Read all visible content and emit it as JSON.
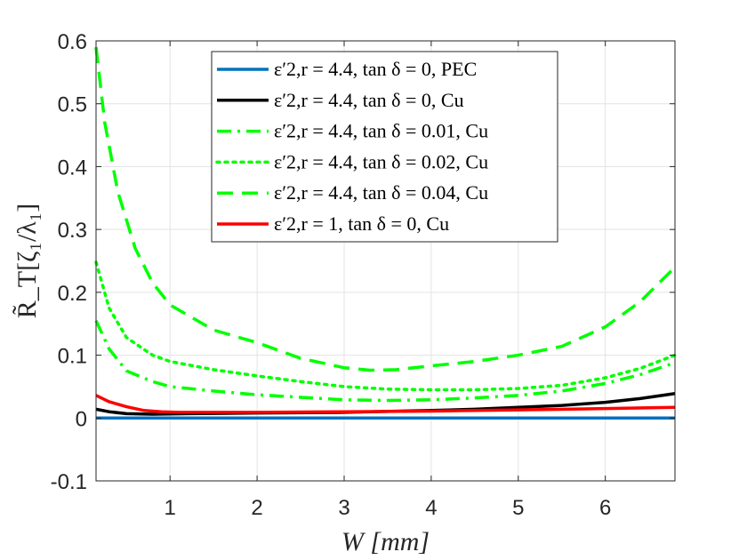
{
  "chart_data": {
    "type": "line",
    "title": "",
    "xlabel": "W  [mm]",
    "ylabel": "R̃_T[ζ₁/λ₁]",
    "xlim": [
      0.15,
      6.8
    ],
    "ylim": [
      -0.1,
      0.6
    ],
    "xticks": [
      1,
      2,
      3,
      4,
      5,
      6
    ],
    "xtick_labels": [
      "1",
      "2",
      "3",
      "4",
      "5",
      "6"
    ],
    "yticks": [
      -0.1,
      0,
      0.1,
      0.2,
      0.3,
      0.4,
      0.5,
      0.6
    ],
    "ytick_labels": [
      "-0.1",
      "0",
      "0.1",
      "0.2",
      "0.3",
      "0.4",
      "0.5",
      "0.6"
    ],
    "grid": true,
    "legend_position": "top-center",
    "series": [
      {
        "name": "ε′2,r = 4.4, tan δ = 0, PEC",
        "color": "#0072bd",
        "style": "solid",
        "x": [
          0.15,
          1,
          2,
          3,
          4,
          5,
          6,
          6.8
        ],
        "values": [
          0.0,
          0.0,
          0.0,
          0.0,
          0.0,
          0.0,
          0.0,
          0.0
        ]
      },
      {
        "name": "ε′2,r = 4.4, tan δ = 0, Cu",
        "color": "#000000",
        "style": "solid",
        "x": [
          0.15,
          0.3,
          0.5,
          0.8,
          1.2,
          2,
          3,
          4,
          4.5,
          5,
          5.5,
          6,
          6.4,
          6.8
        ],
        "values": [
          0.014,
          0.01,
          0.007,
          0.006,
          0.007,
          0.008,
          0.009,
          0.012,
          0.014,
          0.017,
          0.02,
          0.025,
          0.031,
          0.039
        ]
      },
      {
        "name": "ε′2,r = 4.4, tan δ = 0.01, Cu",
        "color": "#00ff00",
        "style": "dashdot",
        "x": [
          0.15,
          0.3,
          0.5,
          0.8,
          1,
          1.5,
          2,
          2.5,
          3,
          3.5,
          4,
          4.5,
          5,
          5.5,
          6,
          6.4,
          6.8
        ],
        "values": [
          0.155,
          0.11,
          0.075,
          0.058,
          0.05,
          0.043,
          0.037,
          0.033,
          0.029,
          0.028,
          0.029,
          0.032,
          0.036,
          0.043,
          0.055,
          0.069,
          0.088
        ]
      },
      {
        "name": "ε′2,r = 4.4, tan δ = 0.02, Cu",
        "color": "#00ff00",
        "style": "dotted",
        "x": [
          0.15,
          0.3,
          0.5,
          0.8,
          1,
          1.5,
          2,
          2.5,
          3,
          3.5,
          4,
          4.5,
          5,
          5.5,
          6,
          6.4,
          6.8
        ],
        "values": [
          0.248,
          0.175,
          0.128,
          0.1,
          0.09,
          0.077,
          0.067,
          0.058,
          0.05,
          0.046,
          0.045,
          0.045,
          0.047,
          0.052,
          0.064,
          0.079,
          0.1
        ]
      },
      {
        "name": "ε′2,r = 4.4, tan δ = 0.04, Cu",
        "color": "#00ff00",
        "style": "dashed",
        "x": [
          0.15,
          0.25,
          0.4,
          0.6,
          0.8,
          1,
          1.5,
          2,
          2.5,
          3,
          3.3,
          3.6,
          4,
          4.5,
          5,
          5.5,
          6,
          6.4,
          6.8
        ],
        "values": [
          0.59,
          0.47,
          0.36,
          0.27,
          0.215,
          0.18,
          0.14,
          0.12,
          0.095,
          0.08,
          0.076,
          0.077,
          0.083,
          0.09,
          0.1,
          0.114,
          0.145,
          0.185,
          0.24
        ]
      },
      {
        "name": "ε′2,r = 1, tan δ = 0, Cu",
        "color": "#ff0000",
        "style": "solid",
        "x": [
          0.15,
          0.3,
          0.5,
          0.7,
          0.9,
          1.1,
          1.5,
          2,
          3,
          4,
          5,
          6,
          6.8
        ],
        "values": [
          0.036,
          0.026,
          0.018,
          0.012,
          0.01,
          0.009,
          0.009,
          0.009,
          0.01,
          0.011,
          0.013,
          0.015,
          0.017
        ]
      }
    ]
  }
}
